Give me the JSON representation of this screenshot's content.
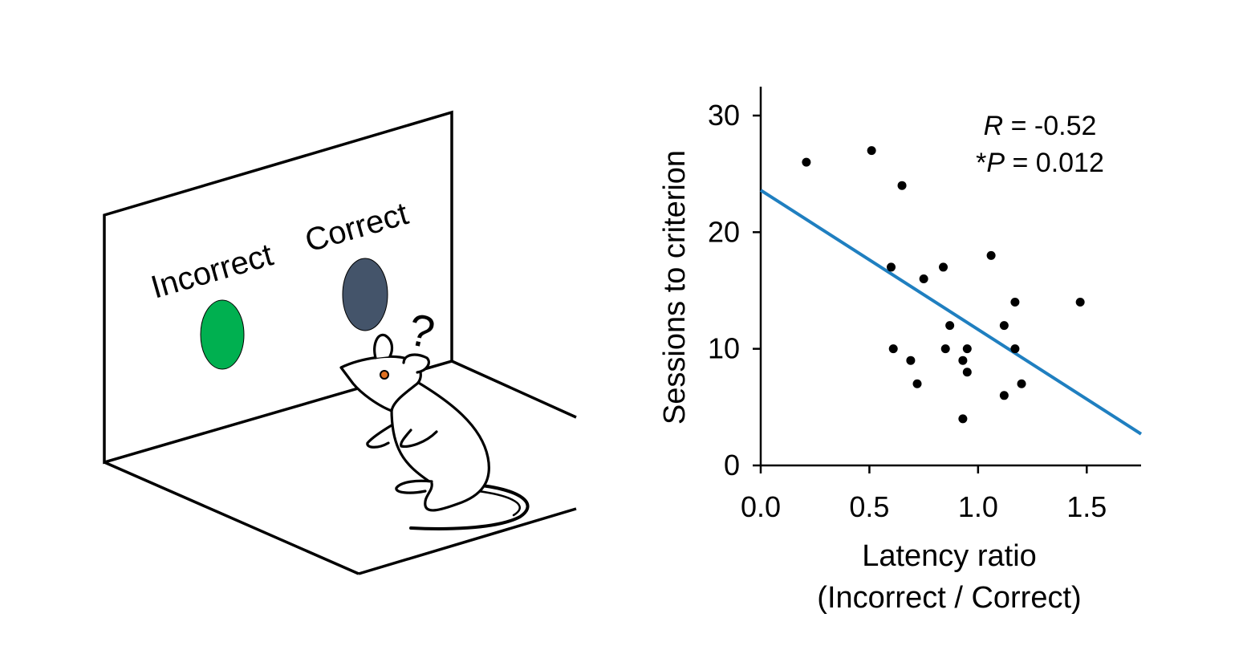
{
  "illustration": {
    "incorrect_label": "Incorrect",
    "correct_label": "Correct",
    "question_mark": "?",
    "incorrect_stimulus_color": "#00b050",
    "correct_stimulus_color": "#44546a",
    "mouse_eye_color": "#e07020"
  },
  "colors": {
    "regression_line": "#1f7fc0",
    "points": "#000000"
  },
  "chart_data": {
    "type": "scatter",
    "title": "",
    "xlabel_line1": "Latency ratio",
    "xlabel_line2": "(Incorrect / Correct)",
    "ylabel": "Sessions to criterion",
    "xlim": [
      0,
      1.75
    ],
    "ylim": [
      0,
      30
    ],
    "xticks": [
      0.0,
      0.5,
      1.0,
      1.5
    ],
    "xtick_labels": [
      "0.0",
      "0.5",
      "1.0",
      "1.5"
    ],
    "yticks": [
      0,
      10,
      20,
      30
    ],
    "ytick_labels": [
      "0",
      "10",
      "20",
      "30"
    ],
    "grid": false,
    "points": [
      {
        "x": 0.21,
        "y": 26
      },
      {
        "x": 0.51,
        "y": 27
      },
      {
        "x": 0.65,
        "y": 24
      },
      {
        "x": 0.6,
        "y": 17
      },
      {
        "x": 0.75,
        "y": 16
      },
      {
        "x": 0.84,
        "y": 17
      },
      {
        "x": 1.06,
        "y": 18
      },
      {
        "x": 1.17,
        "y": 14
      },
      {
        "x": 1.47,
        "y": 14
      },
      {
        "x": 0.87,
        "y": 12
      },
      {
        "x": 1.12,
        "y": 12
      },
      {
        "x": 0.61,
        "y": 10
      },
      {
        "x": 0.85,
        "y": 10
      },
      {
        "x": 0.95,
        "y": 10
      },
      {
        "x": 1.17,
        "y": 10
      },
      {
        "x": 0.69,
        "y": 9
      },
      {
        "x": 0.93,
        "y": 9
      },
      {
        "x": 0.95,
        "y": 8
      },
      {
        "x": 0.72,
        "y": 7
      },
      {
        "x": 1.2,
        "y": 7
      },
      {
        "x": 1.12,
        "y": 6
      },
      {
        "x": 0.93,
        "y": 4
      }
    ],
    "regression": {
      "x_start": 0.0,
      "y_start": 23.6,
      "x_end": 1.75,
      "y_end": 2.7
    },
    "annotation_r_symbol": "R",
    "annotation_r_value": " = -0.52",
    "annotation_p_prefix": "*",
    "annotation_p_symbol": "P",
    "annotation_p_value": " = 0.012"
  }
}
